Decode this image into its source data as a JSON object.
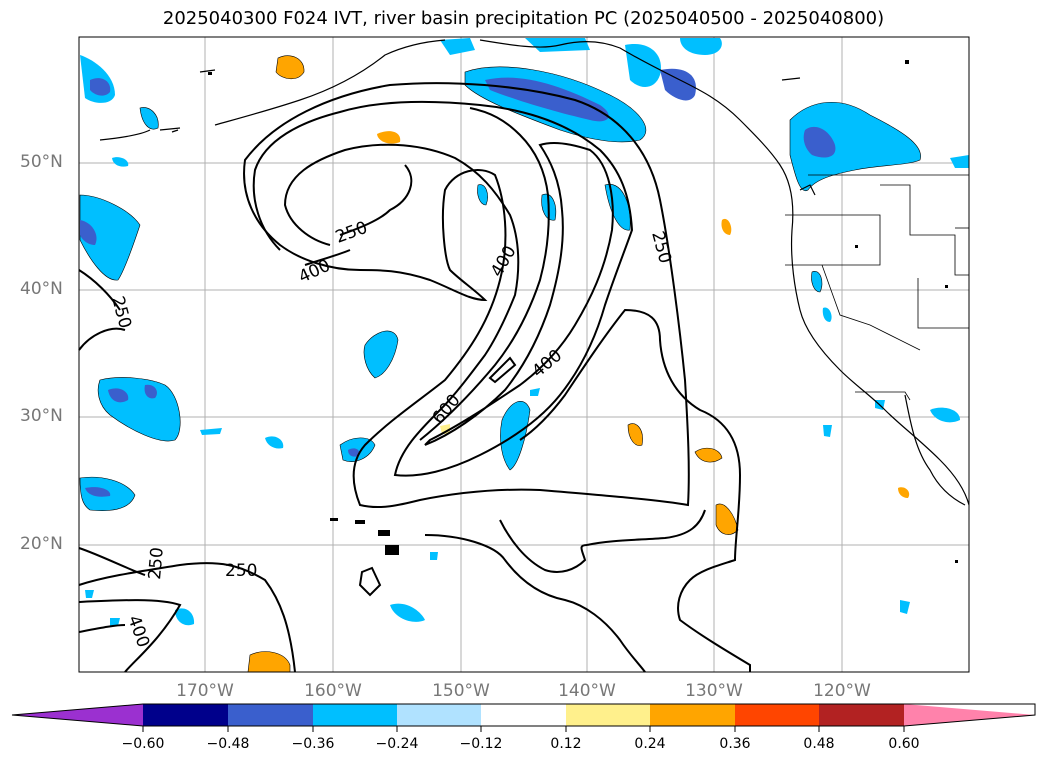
{
  "title": "2025040300 F024 IVT, river basin precipitation PC (2025040500 - 2025040800)",
  "lat_labels": [
    "50°N",
    "40°N",
    "30°N",
    "20°N"
  ],
  "lon_labels": [
    "170°W",
    "160°W",
    "150°W",
    "140°W",
    "130°W",
    "120°W"
  ],
  "contour_labels": [
    "250",
    "400",
    "250",
    "400",
    "250",
    "250",
    "600",
    "400",
    "250",
    "250",
    "400"
  ],
  "colorbar": {
    "colors": [
      "#9b30d0",
      "#00008b",
      "#3a5fcd",
      "#00bfff",
      "#b0e2ff",
      "#ffffff",
      "#fff08c",
      "#ffa500",
      "#ff4500",
      "#b22222",
      "#ff82ab"
    ],
    "tick_labels": [
      "−0.60",
      "−0.48",
      "−0.36",
      "−0.24",
      "−0.12",
      "0.12",
      "0.24",
      "0.36",
      "0.48",
      "0.60"
    ]
  }
}
